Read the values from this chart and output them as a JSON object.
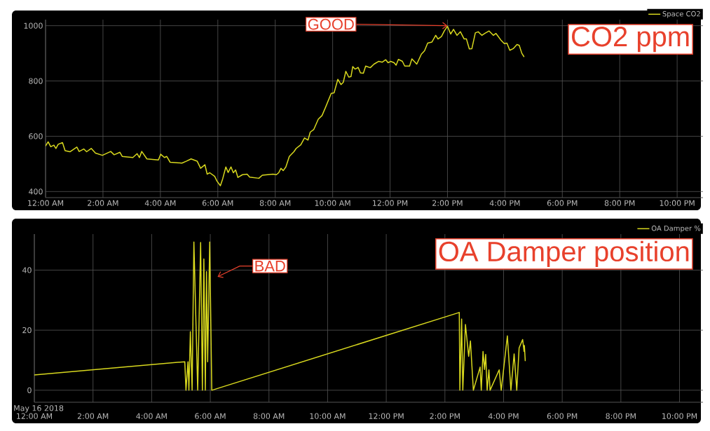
{
  "chart_data": [
    {
      "type": "line",
      "title": "CO2 ppm",
      "annotations": [
        {
          "text": "GOOD",
          "x": 14,
          "y": 1000
        }
      ],
      "x": [
        0,
        0.09,
        0.18,
        0.29,
        0.36,
        0.44,
        0.59,
        0.68,
        0.85,
        1.09,
        1.17,
        1.33,
        1.43,
        1.59,
        1.74,
        1.98,
        2.27,
        2.39,
        2.59,
        2.67,
        3.04,
        3.19,
        3.27,
        3.35,
        3.53,
        3.93,
        4.01,
        4.14,
        4.22,
        4.34,
        4.75,
        4.91,
        5.07,
        5.28,
        5.4,
        5.55,
        5.63,
        5.72,
        5.89,
        5.97,
        6.09,
        6.17,
        6.28,
        6.36,
        6.46,
        6.54,
        6.62,
        6.7,
        6.86,
        7.02,
        7.11,
        7.43,
        7.55,
        7.92,
        8.04,
        8.12,
        8.2,
        8.28,
        8.37,
        8.49,
        8.65,
        8.73,
        8.89,
        9.02,
        9.14,
        9.22,
        9.34,
        9.5,
        9.63,
        9.75,
        9.95,
        10.05,
        10.18,
        10.29,
        10.37,
        10.46,
        10.56,
        10.64,
        10.7,
        10.78,
        10.89,
        10.97,
        11.07,
        11.15,
        11.31,
        11.44,
        11.6,
        11.73,
        11.85,
        11.93,
        12.02,
        12.14,
        12.21,
        12.29,
        12.43,
        12.51,
        12.68,
        12.76,
        12.93,
        13.09,
        13.2,
        13.31,
        13.46,
        13.59,
        13.67,
        13.79,
        13.89,
        14.0,
        14.11,
        14.21,
        14.33,
        14.45,
        14.58,
        14.66,
        14.76,
        14.85,
        14.97,
        15.07,
        15.2,
        15.3,
        15.45,
        15.6,
        15.69,
        15.86,
        15.98,
        16.07,
        16.17,
        16.29,
        16.42,
        16.5,
        16.59,
        16.67
      ],
      "series": [
        {
          "name": "Space CO2",
          "color": "#d8d81e",
          "values": [
            565,
            580,
            562,
            568,
            556,
            571,
            577,
            548,
            544,
            561,
            545,
            554,
            544,
            556,
            539,
            531,
            545,
            533,
            542,
            527,
            523,
            537,
            523,
            545,
            518,
            514,
            535,
            523,
            527,
            506,
            503,
            510,
            518,
            510,
            484,
            497,
            463,
            468,
            455,
            438,
            421,
            446,
            489,
            469,
            489,
            468,
            478,
            451,
            461,
            463,
            452,
            448,
            459,
            463,
            461,
            468,
            484,
            476,
            489,
            527,
            544,
            556,
            569,
            594,
            586,
            615,
            624,
            662,
            675,
            704,
            755,
            757,
            806,
            787,
            795,
            835,
            814,
            816,
            852,
            843,
            849,
            829,
            828,
            854,
            848,
            861,
            871,
            868,
            877,
            866,
            871,
            866,
            857,
            878,
            871,
            854,
            854,
            880,
            861,
            897,
            909,
            937,
            941,
            965,
            952,
            961,
            981,
            998,
            970,
            987,
            965,
            978,
            952,
            952,
            916,
            917,
            974,
            978,
            965,
            972,
            981,
            965,
            972,
            948,
            935,
            937,
            911,
            917,
            932,
            929,
            900,
            887
          ]
        }
      ],
      "xlim": [
        0,
        22.9
      ],
      "ylim": [
        378,
        1022
      ],
      "xticks": [
        {
          "value": 0,
          "label": "12:00 AM"
        },
        {
          "value": 2,
          "label": "2:00 AM"
        },
        {
          "value": 4,
          "label": "4:00 AM"
        },
        {
          "value": 6,
          "label": "6:00 AM"
        },
        {
          "value": 8,
          "label": "8:00 AM"
        },
        {
          "value": 10,
          "label": "10:00 AM"
        },
        {
          "value": 12,
          "label": "12:00 PM"
        },
        {
          "value": 14,
          "label": "2:00 PM"
        },
        {
          "value": 16,
          "label": "4:00 PM"
        },
        {
          "value": 18,
          "label": "6:00 PM"
        },
        {
          "value": 20,
          "label": "8:00 PM"
        },
        {
          "value": 22,
          "label": "10:00 PM"
        }
      ],
      "yticks": [
        400,
        600,
        800,
        1000
      ],
      "grid": true,
      "legend": "top right"
    },
    {
      "type": "line",
      "title": "OA Damper position",
      "annotations": [
        "BAD",
        "May 16 2018"
      ],
      "x": [
        0,
        5.13,
        5.17,
        5.24,
        5.27,
        5.32,
        5.38,
        5.44,
        5.57,
        5.67,
        5.73,
        5.78,
        5.83,
        5.87,
        5.91,
        5.98,
        6.05,
        14.49,
        14.51,
        14.57,
        14.61,
        14.7,
        14.81,
        14.87,
        14.97,
        15.2,
        15.24,
        15.3,
        15.35,
        15.39,
        15.44,
        15.5,
        15.54,
        15.85,
        15.92,
        16.13,
        16.25,
        16.36,
        16.45,
        16.53,
        16.65,
        16.7,
        16.71,
        16.74
      ],
      "series": [
        {
          "name": "OA Damper %",
          "color": "#d8d81e",
          "values": [
            5.1,
            9.5,
            0,
            9.5,
            0,
            19.5,
            0,
            49.4,
            0,
            49.2,
            0,
            43.7,
            0,
            39.5,
            9.5,
            49.4,
            0,
            25.9,
            0,
            23.7,
            0,
            21.9,
            11.3,
            16.4,
            0,
            7.7,
            0,
            12.9,
            6.9,
            11.9,
            0,
            6.8,
            0,
            6.8,
            0,
            18.1,
            0,
            12.1,
            0,
            14.1,
            16.9,
            12.9,
            14.9,
            9.7
          ]
        }
      ],
      "xlim": [
        0,
        22.8
      ],
      "ylim": [
        -4,
        52
      ],
      "xticks": [
        {
          "value": 0,
          "label": "12:00 AM"
        },
        {
          "value": 2,
          "label": "2:00 AM"
        },
        {
          "value": 4,
          "label": "4:00 AM"
        },
        {
          "value": 6,
          "label": "6:00 AM"
        },
        {
          "value": 8,
          "label": "8:00 AM"
        },
        {
          "value": 10,
          "label": "10:00 AM"
        },
        {
          "value": 12,
          "label": "12:00 PM"
        },
        {
          "value": 14,
          "label": "2:00 PM"
        },
        {
          "value": 16,
          "label": "4:00 PM"
        },
        {
          "value": 18,
          "label": "6:00 PM"
        },
        {
          "value": 20,
          "label": "8:00 PM"
        },
        {
          "value": 22,
          "label": "10:00 PM"
        }
      ],
      "yticks": [
        0,
        20,
        40
      ],
      "grid": true,
      "legend": "top right"
    }
  ]
}
